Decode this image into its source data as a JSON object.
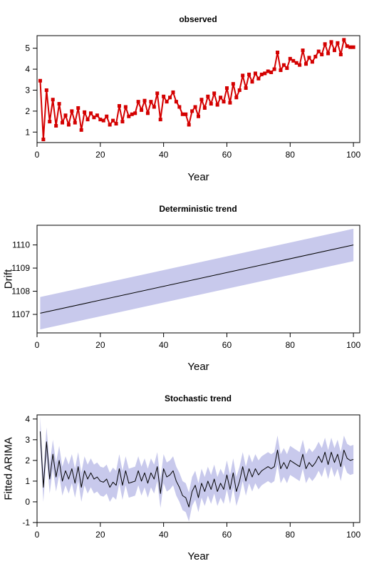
{
  "chart_data": [
    {
      "type": "line",
      "title": "observed",
      "xlabel": "Year",
      "ylabel": "",
      "xlim": [
        0,
        102
      ],
      "ylim": [
        0.5,
        5.6
      ],
      "x_ticks": [
        0,
        20,
        40,
        60,
        80,
        100
      ],
      "y_ticks": [
        1,
        2,
        3,
        4,
        5
      ],
      "line_color": "#d40000",
      "markers": true,
      "band": false,
      "series": [
        {
          "x": [
            1,
            2,
            3,
            4,
            5,
            6,
            7,
            8,
            9,
            10,
            11,
            12,
            13,
            14,
            15,
            16,
            17,
            18,
            19,
            20,
            21,
            22,
            23,
            24,
            25,
            26,
            27,
            28,
            29,
            30,
            31,
            32,
            33,
            34,
            35,
            36,
            37,
            38,
            39,
            40,
            41,
            42,
            43,
            44,
            45,
            46,
            47,
            48,
            49,
            50,
            51,
            52,
            53,
            54,
            55,
            56,
            57,
            58,
            59,
            60,
            61,
            62,
            63,
            64,
            65,
            66,
            67,
            68,
            69,
            70,
            71,
            72,
            73,
            74,
            75,
            76,
            77,
            78,
            79,
            80,
            81,
            82,
            83,
            84,
            85,
            86,
            87,
            88,
            89,
            90,
            91,
            92,
            93,
            94,
            95,
            96,
            97,
            98,
            99,
            100
          ],
          "values": [
            3.45,
            0.65,
            3.0,
            1.5,
            2.55,
            1.3,
            2.35,
            1.45,
            1.8,
            1.35,
            2.0,
            1.45,
            2.15,
            1.1,
            1.95,
            1.6,
            1.9,
            1.7,
            1.8,
            1.6,
            1.55,
            1.75,
            1.35,
            1.55,
            1.4,
            2.25,
            1.5,
            2.2,
            1.75,
            1.85,
            1.9,
            2.45,
            2.05,
            2.5,
            1.9,
            2.45,
            2.2,
            2.85,
            1.6,
            2.7,
            2.45,
            2.65,
            2.9,
            2.45,
            2.2,
            1.85,
            1.85,
            1.35,
            2.0,
            2.2,
            1.75,
            2.55,
            2.15,
            2.7,
            2.35,
            2.85,
            2.3,
            2.65,
            2.45,
            3.1,
            2.4,
            3.3,
            2.65,
            3.0,
            3.7,
            3.1,
            3.75,
            3.4,
            3.8,
            3.55,
            3.75,
            3.8,
            3.9,
            3.85,
            4.0,
            4.8,
            3.95,
            4.2,
            4.05,
            4.5,
            4.4,
            4.3,
            4.2,
            4.9,
            4.25,
            4.55,
            4.35,
            4.6,
            4.85,
            4.7,
            5.2,
            4.75,
            5.3,
            4.9,
            5.25,
            4.7,
            5.4,
            5.1,
            5.05,
            5.05
          ]
        }
      ]
    },
    {
      "type": "line",
      "title": "Deterministic trend",
      "xlabel": "Year",
      "ylabel": "Drift",
      "xlim": [
        0,
        102
      ],
      "ylim": [
        1106.2,
        1110.85
      ],
      "x_ticks": [
        0,
        20,
        40,
        60,
        80,
        100
      ],
      "y_ticks": [
        1107,
        1108,
        1109,
        1110
      ],
      "line_color": "#000000",
      "band_color": "#c8c9ec",
      "markers": false,
      "band": true,
      "series": [
        {
          "x": [
            1,
            100
          ],
          "values": [
            1107.05,
            1110.0
          ],
          "lower": [
            1106.35,
            1109.3
          ],
          "upper": [
            1107.75,
            1110.7
          ]
        }
      ]
    },
    {
      "type": "line",
      "title": "Stochastic trend",
      "xlabel": "Year",
      "ylabel": "Fitted ARIMA",
      "xlim": [
        0,
        102
      ],
      "ylim": [
        -1.0,
        4.2
      ],
      "x_ticks": [
        0,
        20,
        40,
        60,
        80,
        100
      ],
      "y_ticks": [
        -1,
        0,
        1,
        2,
        3,
        4
      ],
      "line_color": "#000000",
      "band_color": "#c8c9ec",
      "band_halfwidth": 0.7,
      "markers": false,
      "band": true,
      "series": [
        {
          "x": [
            1,
            2,
            3,
            4,
            5,
            6,
            7,
            8,
            9,
            10,
            11,
            12,
            13,
            14,
            15,
            16,
            17,
            18,
            19,
            20,
            21,
            22,
            23,
            24,
            25,
            26,
            27,
            28,
            29,
            30,
            31,
            32,
            33,
            34,
            35,
            36,
            37,
            38,
            39,
            40,
            41,
            42,
            43,
            44,
            45,
            46,
            47,
            48,
            49,
            50,
            51,
            52,
            53,
            54,
            55,
            56,
            57,
            58,
            59,
            60,
            61,
            62,
            63,
            64,
            65,
            66,
            67,
            68,
            69,
            70,
            71,
            72,
            73,
            74,
            75,
            76,
            77,
            78,
            79,
            80,
            81,
            82,
            83,
            84,
            85,
            86,
            87,
            88,
            89,
            90,
            91,
            92,
            93,
            94,
            95,
            96,
            97,
            98,
            99,
            100
          ],
          "values": [
            3.4,
            0.7,
            2.9,
            1.1,
            2.3,
            1.2,
            2.0,
            1.0,
            1.5,
            1.1,
            1.6,
            0.9,
            1.7,
            0.7,
            1.5,
            1.1,
            1.4,
            1.1,
            1.2,
            1.0,
            0.95,
            1.1,
            0.7,
            0.95,
            0.8,
            1.6,
            0.8,
            1.5,
            0.9,
            0.95,
            1.0,
            1.5,
            1.0,
            1.4,
            0.9,
            1.4,
            1.1,
            1.7,
            0.4,
            1.6,
            1.2,
            1.3,
            1.5,
            1.0,
            0.7,
            0.3,
            0.2,
            -0.25,
            0.5,
            0.8,
            0.2,
            0.9,
            0.5,
            1.0,
            0.6,
            1.1,
            0.5,
            0.9,
            0.6,
            1.3,
            0.6,
            1.4,
            0.5,
            1.0,
            1.7,
            1.0,
            1.6,
            1.2,
            1.6,
            1.3,
            1.5,
            1.6,
            1.7,
            1.6,
            1.7,
            2.5,
            1.6,
            1.9,
            1.6,
            2.0,
            1.9,
            1.8,
            1.7,
            2.3,
            1.6,
            1.9,
            1.7,
            1.9,
            2.2,
            1.9,
            2.4,
            1.8,
            2.4,
            1.9,
            2.3,
            1.7,
            2.5,
            2.1,
            2.0,
            2.05
          ]
        }
      ]
    }
  ]
}
